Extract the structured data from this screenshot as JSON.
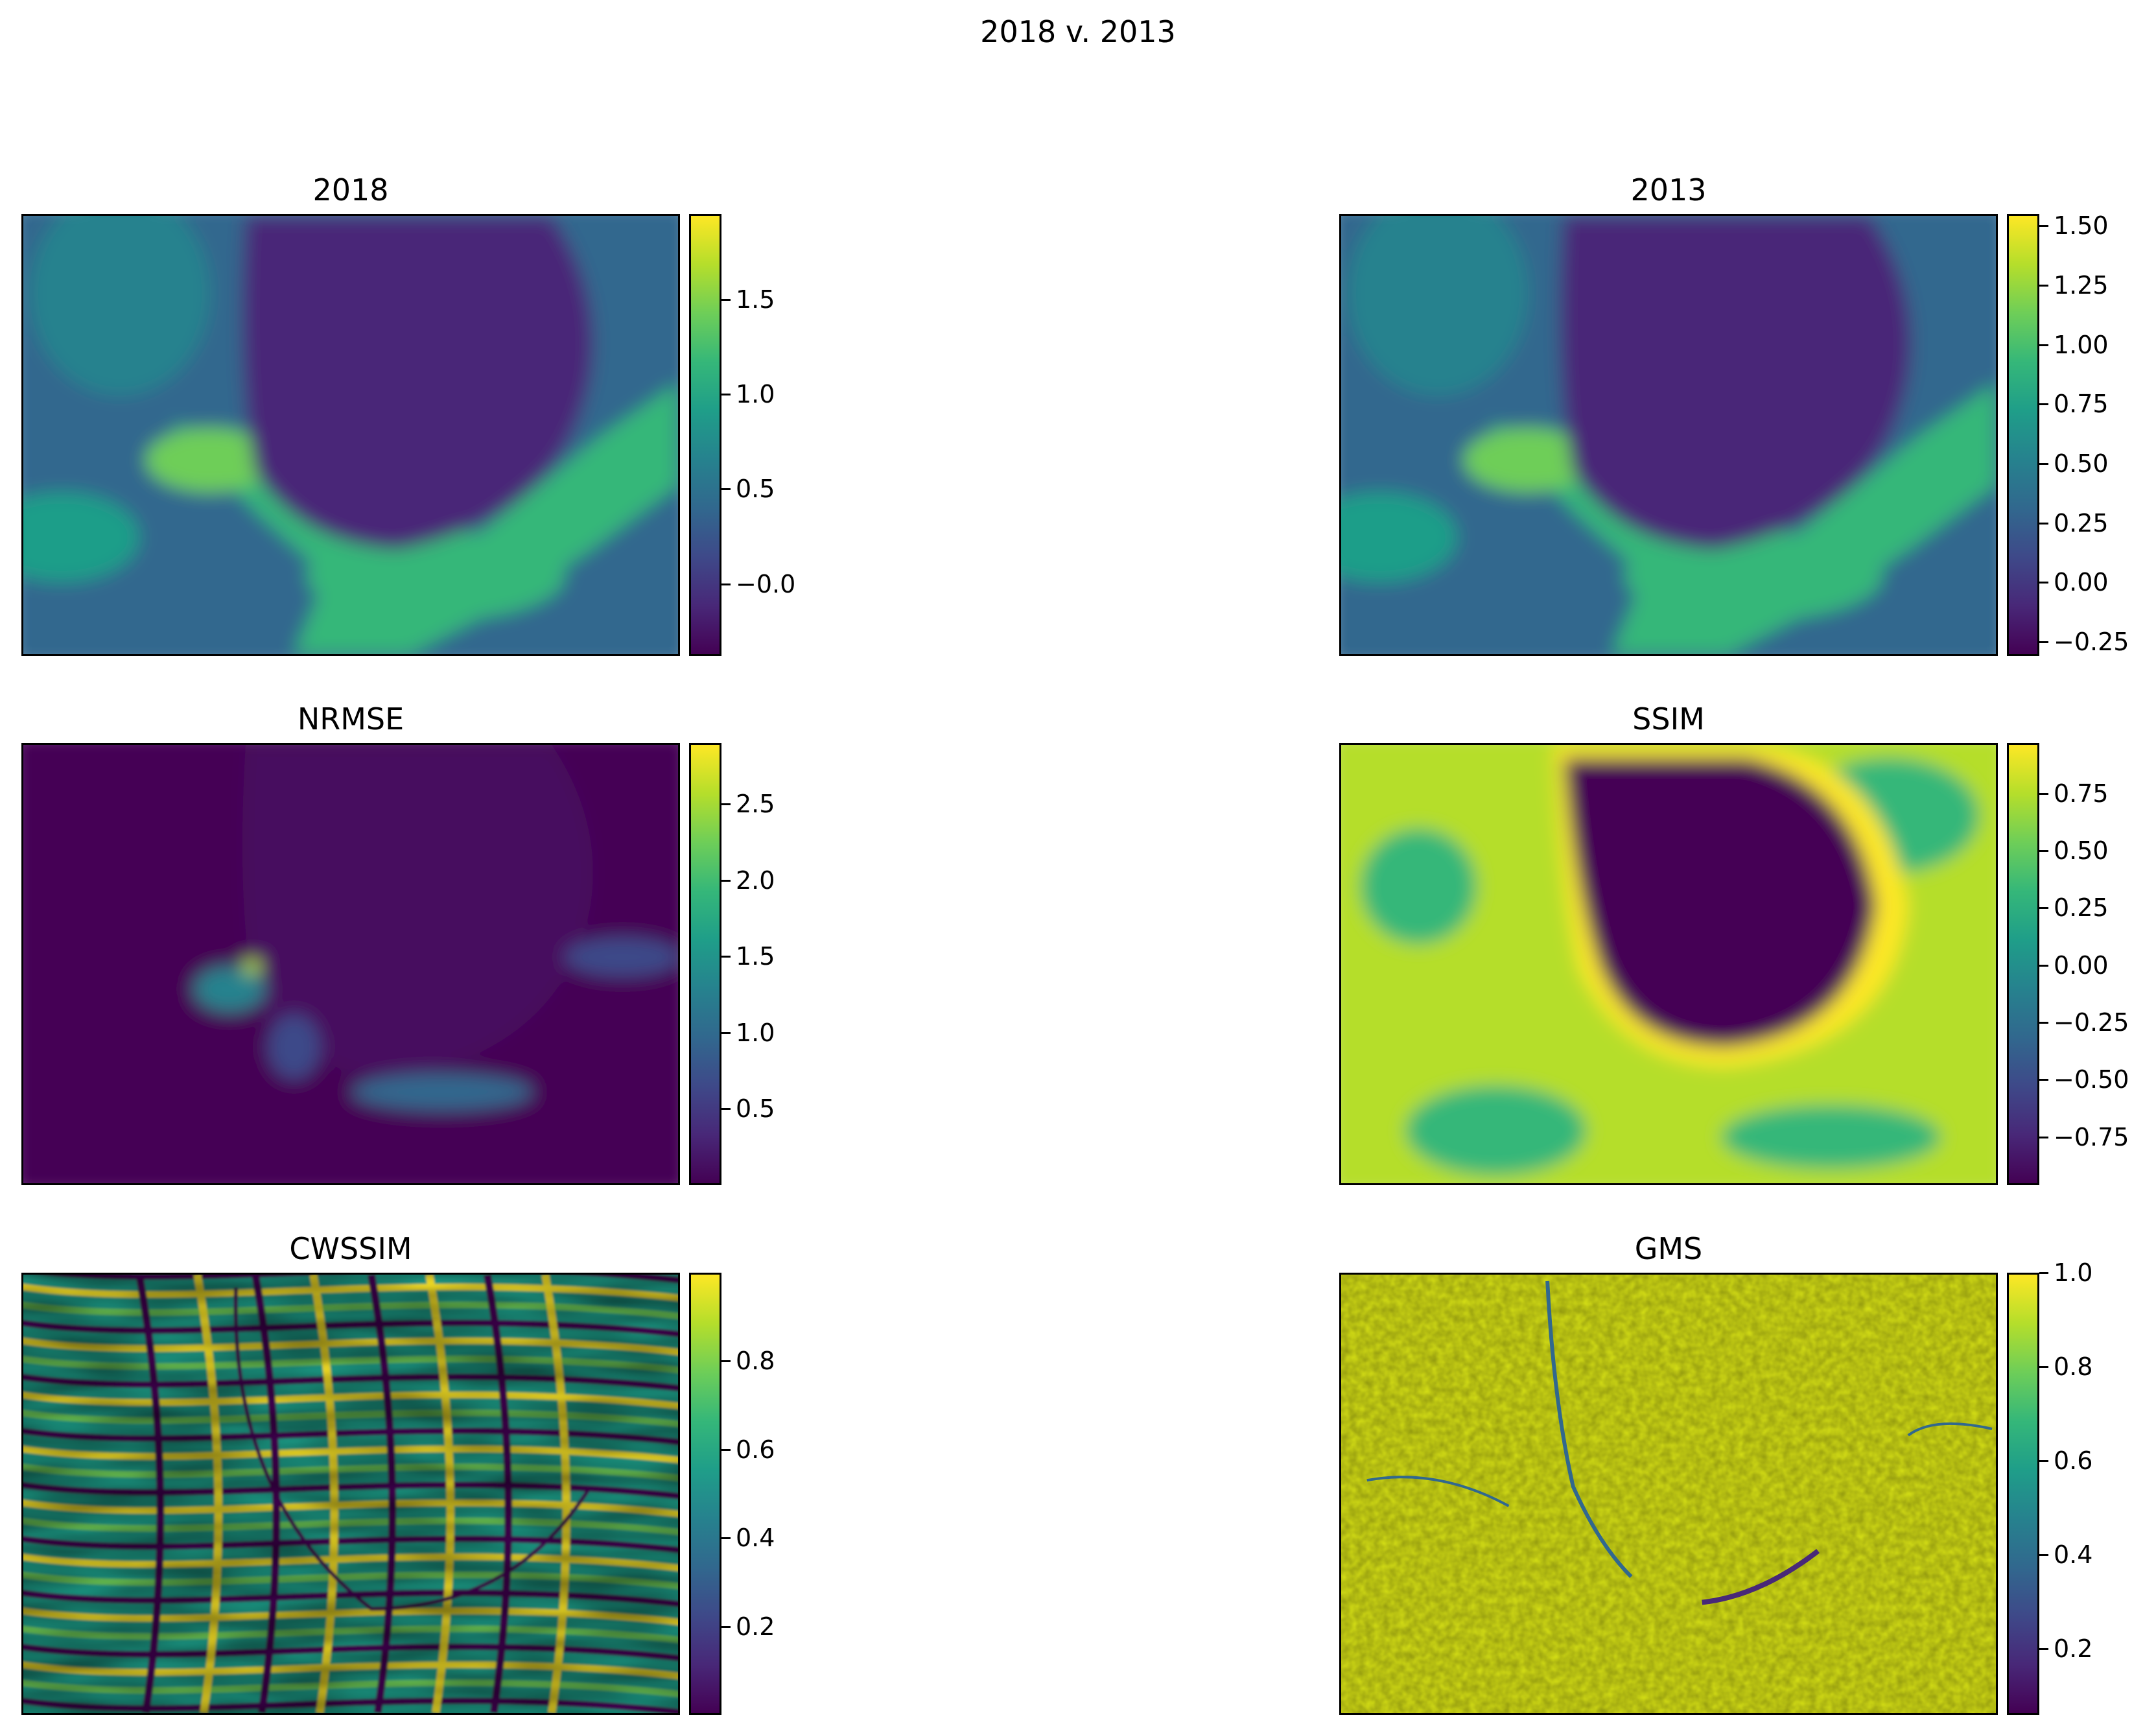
{
  "figure": {
    "title": "2018 v. 2013"
  },
  "colormap": [
    "#440154",
    "#482878",
    "#3e4989",
    "#31688e",
    "#26828e",
    "#1f9e89",
    "#35b779",
    "#6ece58",
    "#b5de2b",
    "#fde725"
  ],
  "chart_data": [
    {
      "type": "heatmap",
      "id": "p2018",
      "title": "2018",
      "colorbar": {
        "range": [
          -0.38,
          1.95
        ],
        "ticks": [
          -0.0,
          0.5,
          1.0,
          1.5
        ],
        "tick_labels": [
          "−0.0",
          "0.5",
          "1.0",
          "1.5"
        ]
      },
      "pattern": "crater"
    },
    {
      "type": "heatmap",
      "id": "p2013",
      "title": "2013",
      "colorbar": {
        "range": [
          -0.31,
          1.55
        ],
        "ticks": [
          -0.25,
          0.0,
          0.25,
          0.5,
          0.75,
          1.0,
          1.25,
          1.5
        ],
        "tick_labels": [
          "−0.25",
          "0.00",
          "0.25",
          "0.50",
          "0.75",
          "1.00",
          "1.25",
          "1.50"
        ]
      },
      "pattern": "crater"
    },
    {
      "type": "heatmap",
      "id": "pnrmse",
      "title": "NRMSE",
      "colorbar": {
        "range": [
          0.0,
          2.9
        ],
        "ticks": [
          0.5,
          1.0,
          1.5,
          2.0,
          2.5
        ],
        "tick_labels": [
          "0.5",
          "1.0",
          "1.5",
          "2.0",
          "2.5"
        ]
      },
      "pattern": "low"
    },
    {
      "type": "heatmap",
      "id": "pssim",
      "title": "SSIM",
      "colorbar": {
        "range": [
          -0.96,
          0.97
        ],
        "ticks": [
          -0.75,
          -0.5,
          -0.25,
          0.0,
          0.25,
          0.5,
          0.75
        ],
        "tick_labels": [
          "−0.75",
          "−0.50",
          "−0.25",
          "0.00",
          "0.25",
          "0.50",
          "0.75"
        ]
      },
      "pattern": "inverse"
    },
    {
      "type": "heatmap",
      "id": "pcwssim",
      "title": "CWSSIM",
      "colorbar": {
        "range": [
          0.0,
          1.0
        ],
        "ticks": [
          0.2,
          0.4,
          0.6,
          0.8
        ],
        "tick_labels": [
          "0.2",
          "0.4",
          "0.6",
          "0.8"
        ]
      },
      "pattern": "banded"
    },
    {
      "type": "heatmap",
      "id": "pgms",
      "title": "GMS",
      "colorbar": {
        "range": [
          0.06,
          1.0
        ],
        "ticks": [
          0.2,
          0.4,
          0.6,
          0.8,
          1.0
        ],
        "tick_labels": [
          "0.2",
          "0.4",
          "0.6",
          "0.8",
          "1.0"
        ]
      },
      "pattern": "high"
    }
  ]
}
